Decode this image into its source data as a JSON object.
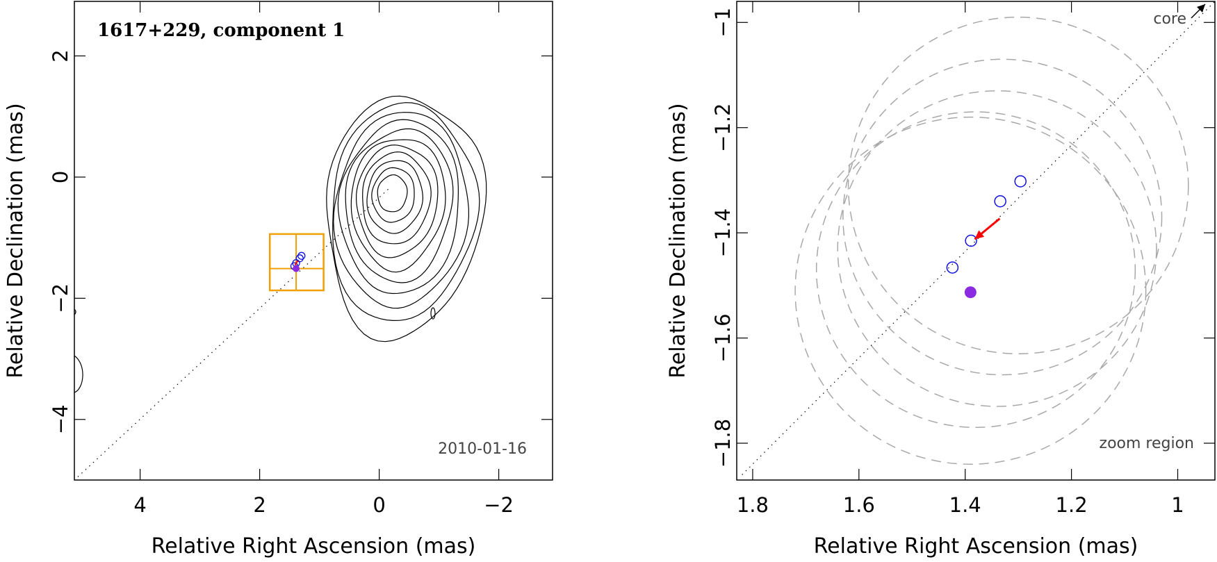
{
  "chart_data": [
    {
      "type": "contour",
      "title": "1617+229, component 1",
      "annotation_date": "2010-01-16",
      "xlabel": "Relative Right Ascension (mas)",
      "ylabel": "Relative Declination (mas)",
      "xlim": [
        5.1,
        -2.9
      ],
      "ylim": [
        -5.0,
        2.9
      ],
      "xticks": [
        4,
        2,
        0,
        -2
      ],
      "xtick_labels": [
        "4",
        "2",
        "0",
        "−2"
      ],
      "yticks": [
        2,
        0,
        -2,
        -4
      ],
      "ytick_labels": [
        "2",
        "0",
        "−2",
        "−4"
      ],
      "contour_levels": 11,
      "contour_center": [
        -0.2,
        -0.25
      ],
      "contour_orientation_deg": 40,
      "ridge_line": {
        "from": [
          -0.15,
          -0.2
        ],
        "to": [
          5.1,
          -5.0
        ],
        "style": "dotted"
      },
      "zoom_box": {
        "x": [
          0.93,
          1.83
        ],
        "y": [
          -1.87,
          -0.94
        ],
        "color": "#f0a000"
      },
      "circles": [
        {
          "x": 1.3,
          "y": -1.3
        },
        {
          "x": 1.33,
          "y": -1.34
        },
        {
          "x": 1.39,
          "y": -1.42
        },
        {
          "x": 1.42,
          "y": -1.47
        }
      ],
      "filled_point": {
        "x": 1.39,
        "y": -1.51
      },
      "isolated_contour": {
        "x": -0.9,
        "y": -2.25
      }
    },
    {
      "type": "scatter",
      "title": "",
      "xlabel": "Relative Right Ascension (mas)",
      "ylabel": "Relative Declination (mas)",
      "xlim": [
        1.83,
        0.93
      ],
      "ylim": [
        -1.87,
        -0.96
      ],
      "xticks": [
        1.8,
        1.6,
        1.4,
        1.2,
        1.0
      ],
      "xtick_labels": [
        "1.8",
        "1.6",
        "1.4",
        "1.2",
        "1"
      ],
      "yticks": [
        -1.0,
        -1.2,
        -1.4,
        -1.6,
        -1.8
      ],
      "ytick_labels": [
        "−1",
        "−1.2",
        "−1.4",
        "−1.6",
        "−1.8"
      ],
      "core_label": "core",
      "zoom_label": "zoom region",
      "ridge_line": {
        "from": [
          1.82,
          -1.86
        ],
        "to": [
          0.93,
          -0.96
        ],
        "style": "dotted"
      },
      "open_circles": [
        {
          "x": 1.296,
          "y": -1.302
        },
        {
          "x": 1.334,
          "y": -1.34
        },
        {
          "x": 1.389,
          "y": -1.415
        },
        {
          "x": 1.424,
          "y": -1.466
        }
      ],
      "filled_point": {
        "x": 1.39,
        "y": -1.513,
        "color": "#8a2be2"
      },
      "arrow": {
        "from": [
          1.335,
          -1.373
        ],
        "to": [
          1.382,
          -1.412
        ],
        "color": "#ff0000"
      },
      "uncertainty_circles": [
        {
          "cx": 1.3,
          "cy": -1.31,
          "r": 0.32
        },
        {
          "cx": 1.33,
          "cy": -1.37,
          "r": 0.3
        },
        {
          "cx": 1.34,
          "cy": -1.43,
          "r": 0.3
        },
        {
          "cx": 1.38,
          "cy": -1.47,
          "r": 0.3
        },
        {
          "cx": 1.39,
          "cy": -1.51,
          "r": 0.33
        }
      ]
    }
  ]
}
